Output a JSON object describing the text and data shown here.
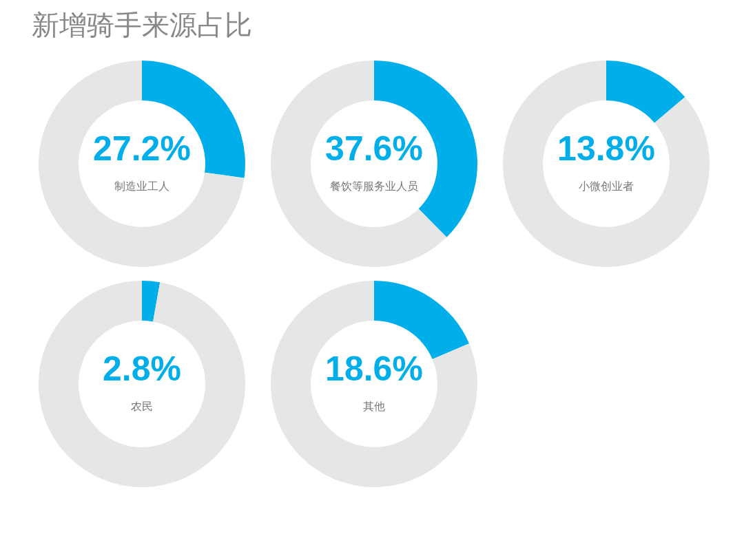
{
  "chart_data": [
    {
      "type": "donut",
      "title": "新增骑手来源占比",
      "annotations": [
        "制造业工人"
      ],
      "categories": [
        null,
        null
      ],
      "values": [
        27.2,
        72.8
      ],
      "colors": [
        "#00aeea",
        "#e6e6e6"
      ],
      "value_labels": [
        "27.2%",
        null
      ]
    },
    {
      "type": "donut",
      "annotations": [
        "餐饮等服务业人员"
      ],
      "categories": [
        null,
        null
      ],
      "values": [
        37.6,
        62.4
      ],
      "colors": [
        "#00aeea",
        "#e6e6e6"
      ],
      "value_labels": [
        "37.6%",
        null
      ]
    },
    {
      "type": "donut",
      "annotations": [
        "小微创业者"
      ],
      "categories": [
        null,
        null
      ],
      "values": [
        13.8,
        86.2
      ],
      "colors": [
        "#00aeea",
        "#e6e6e6"
      ],
      "value_labels": [
        "13.8%",
        null
      ]
    },
    {
      "type": "donut",
      "annotations": [
        "农民"
      ],
      "categories": [
        null,
        null
      ],
      "values": [
        2.8,
        97.2
      ],
      "colors": [
        "#00aeea",
        "#e6e6e6"
      ],
      "value_labels": [
        "2.8%",
        null
      ]
    },
    {
      "type": "donut",
      "annotations": [
        "其他"
      ],
      "categories": [
        null,
        null
      ],
      "values": [
        18.6,
        81.4
      ],
      "colors": [
        "#00aeea",
        "#e6e6e6"
      ],
      "value_labels": [
        "18.6%",
        null
      ]
    }
  ]
}
